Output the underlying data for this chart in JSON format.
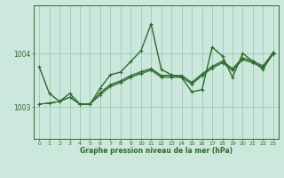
{
  "title": "Graphe pression niveau de la mer (hPa)",
  "bg_color": "#cce8dd",
  "line_color": "#2d6a2d",
  "grid_color": "#99ccbb",
  "axis_color": "#2d6a2d",
  "ylim": [
    1002.4,
    1004.9
  ],
  "yticks": [
    1003,
    1004
  ],
  "xlim": [
    -0.5,
    23.5
  ],
  "xticks": [
    0,
    1,
    2,
    3,
    4,
    5,
    6,
    7,
    8,
    9,
    10,
    11,
    12,
    13,
    14,
    15,
    16,
    17,
    18,
    19,
    20,
    21,
    22,
    23
  ],
  "series_main": [
    1003.75,
    1003.25,
    1003.1,
    1003.25,
    1003.05,
    1003.05,
    1003.35,
    1003.6,
    1003.65,
    1003.85,
    1004.05,
    1004.55,
    1003.7,
    1003.6,
    1003.55,
    1003.28,
    1003.32,
    1004.12,
    1003.95,
    1003.55,
    1004.0,
    1003.85,
    1003.7,
    1004.02
  ],
  "series_trend": [
    [
      1003.05,
      1003.07,
      1003.1,
      1003.18,
      1003.05,
      1003.05,
      1003.22,
      1003.38,
      1003.45,
      1003.55,
      1003.62,
      1003.68,
      1003.55,
      1003.55,
      1003.55,
      1003.42,
      1003.58,
      1003.72,
      1003.82,
      1003.68,
      1003.88,
      1003.82,
      1003.73,
      1003.98
    ],
    [
      1003.05,
      1003.07,
      1003.1,
      1003.18,
      1003.05,
      1003.05,
      1003.25,
      1003.4,
      1003.47,
      1003.57,
      1003.64,
      1003.7,
      1003.57,
      1003.57,
      1003.57,
      1003.44,
      1003.6,
      1003.74,
      1003.84,
      1003.7,
      1003.9,
      1003.84,
      1003.75,
      1004.0
    ],
    [
      1003.05,
      1003.07,
      1003.1,
      1003.18,
      1003.05,
      1003.05,
      1003.27,
      1003.42,
      1003.49,
      1003.59,
      1003.66,
      1003.72,
      1003.59,
      1003.59,
      1003.59,
      1003.46,
      1003.62,
      1003.76,
      1003.86,
      1003.72,
      1003.92,
      1003.86,
      1003.77,
      1004.02
    ]
  ],
  "figsize": [
    3.2,
    2.0
  ],
  "dpi": 100
}
